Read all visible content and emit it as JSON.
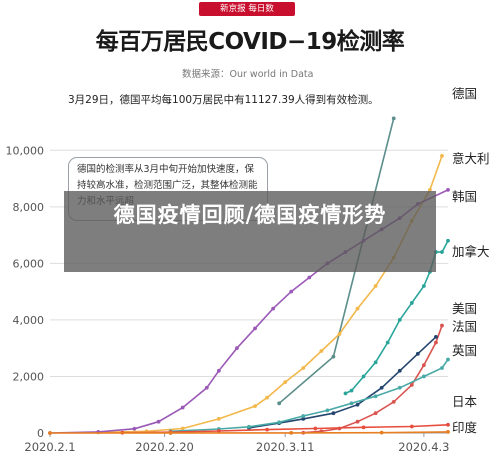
{
  "header": {
    "logo": "新京报 每日数",
    "title": "每百万居民COVID−19检测率",
    "source": "数据来源：Our world in Data"
  },
  "annotations": {
    "note": "3月29日，德国平均每100万居民中有11127.39人得到有效检测。",
    "callout": "德国的检测率从3月中旬开始加快速度，保持较高水准，检测范围广泛，其整体检测能力和水平远超"
  },
  "overlay": {
    "text": "德国疫情回顾/德国疫情形势"
  },
  "colors": {
    "germany": "#5b8e8a",
    "italy": "#f2b84b",
    "korea": "#9b59b6",
    "canada": "#2aa59a",
    "usa": "#d9534f",
    "france": "#24466e",
    "uk": "#48a9a6",
    "japan": "#e74c3c",
    "india": "#e67e22",
    "grid": "#dddddd",
    "axis_text": "#555555"
  },
  "chart_data": {
    "type": "line",
    "title": "每百万居民COVID−19检测率",
    "xlabel": "",
    "ylabel": "",
    "x_ticks": [
      "2020.2.1",
      "2020.2.20",
      "2020.3.11",
      "2020.4.3"
    ],
    "x_tick_days": [
      0,
      19,
      39,
      62
    ],
    "xlim": [
      0,
      66
    ],
    "ylim": [
      0,
      11000
    ],
    "y_ticks": [
      0,
      2000,
      4000,
      6000,
      8000,
      10000
    ],
    "y_tick_labels": [
      "0",
      "2,000",
      "4,000",
      "6,000",
      "8,000",
      "10,000"
    ],
    "grid": true,
    "series": [
      {
        "name": "德国",
        "color_key": "germany",
        "points": [
          [
            38,
            1050
          ],
          [
            47,
            2700
          ],
          [
            57,
            11127
          ]
        ]
      },
      {
        "name": "意大利",
        "color_key": "italy",
        "points": [
          [
            8,
            20
          ],
          [
            16,
            60
          ],
          [
            22,
            160
          ],
          [
            28,
            500
          ],
          [
            34,
            950
          ],
          [
            36,
            1250
          ],
          [
            39,
            1800
          ],
          [
            42,
            2300
          ],
          [
            45,
            2900
          ],
          [
            48,
            3500
          ],
          [
            51,
            4400
          ],
          [
            54,
            5200
          ],
          [
            57,
            6200
          ],
          [
            60,
            7500
          ],
          [
            63,
            8600
          ],
          [
            65,
            9800
          ]
        ]
      },
      {
        "name": "韩国",
        "color_key": "korea",
        "points": [
          [
            0,
            0
          ],
          [
            8,
            40
          ],
          [
            14,
            150
          ],
          [
            18,
            400
          ],
          [
            22,
            900
          ],
          [
            26,
            1600
          ],
          [
            28,
            2200
          ],
          [
            31,
            3000
          ],
          [
            34,
            3700
          ],
          [
            37,
            4400
          ],
          [
            40,
            5000
          ],
          [
            43,
            5500
          ],
          [
            46,
            6000
          ],
          [
            49,
            6400
          ],
          [
            52,
            6800
          ],
          [
            55,
            7200
          ],
          [
            58,
            7600
          ],
          [
            61,
            8100
          ],
          [
            66,
            8600
          ]
        ]
      },
      {
        "name": "加拿大",
        "color_key": "canada",
        "points": [
          [
            49,
            1400
          ],
          [
            50,
            1500
          ],
          [
            52,
            2000
          ],
          [
            54,
            2500
          ],
          [
            56,
            3200
          ],
          [
            58,
            4000
          ],
          [
            60,
            4600
          ],
          [
            62,
            5200
          ],
          [
            63,
            5700
          ],
          [
            64,
            6400
          ],
          [
            65,
            6400
          ],
          [
            66,
            6800
          ]
        ]
      },
      {
        "name": "美国",
        "color_key": "usa",
        "points": [
          [
            42,
            10
          ],
          [
            45,
            60
          ],
          [
            48,
            160
          ],
          [
            51,
            400
          ],
          [
            54,
            700
          ],
          [
            57,
            1100
          ],
          [
            60,
            1700
          ],
          [
            62,
            2400
          ],
          [
            64,
            3200
          ],
          [
            65,
            3800
          ]
        ]
      },
      {
        "name": "法国",
        "color_key": "france",
        "points": [
          [
            33,
            180
          ],
          [
            38,
            350
          ],
          [
            42,
            500
          ],
          [
            47,
            700
          ],
          [
            51,
            1000
          ],
          [
            55,
            1600
          ],
          [
            58,
            2200
          ],
          [
            61,
            2800
          ],
          [
            64,
            3400
          ]
        ]
      },
      {
        "name": "英国",
        "color_key": "uk",
        "points": [
          [
            20,
            60
          ],
          [
            28,
            140
          ],
          [
            33,
            220
          ],
          [
            38,
            380
          ],
          [
            42,
            600
          ],
          [
            46,
            800
          ],
          [
            50,
            1050
          ],
          [
            54,
            1300
          ],
          [
            58,
            1600
          ],
          [
            62,
            2000
          ],
          [
            65,
            2300
          ],
          [
            66,
            2600
          ]
        ]
      },
      {
        "name": "日本",
        "color_key": "japan",
        "points": [
          [
            12,
            10
          ],
          [
            20,
            30
          ],
          [
            28,
            70
          ],
          [
            36,
            120
          ],
          [
            44,
            160
          ],
          [
            52,
            200
          ],
          [
            60,
            230
          ],
          [
            66,
            290
          ]
        ]
      },
      {
        "name": "印度",
        "color_key": "india",
        "points": [
          [
            0,
            0
          ],
          [
            20,
            2
          ],
          [
            40,
            5
          ],
          [
            55,
            12
          ],
          [
            66,
            40
          ]
        ]
      }
    ],
    "legend": "right, labels at line ends",
    "legend_labels": [
      "德国",
      "意大利",
      "韩国",
      "加拿大",
      "美国",
      "法国",
      "英国",
      "日本",
      "印度"
    ]
  }
}
